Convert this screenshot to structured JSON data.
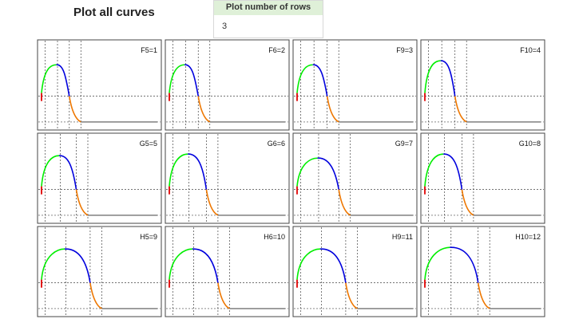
{
  "header": {
    "title": "Plot all curves",
    "rows_label": "Plot number of rows",
    "rows_value": "3"
  },
  "colors": {
    "phase1": "#e00000",
    "phase2": "#00ee00",
    "phase3": "#0000dd",
    "phase4": "#ee7700",
    "tail": "#555555",
    "dashed": "#444444"
  },
  "chart_data": {
    "type": "line",
    "grid": "3x4",
    "panels": [
      {
        "label": "F5=1",
        "peak": 0.75,
        "plateau": 0.02
      },
      {
        "label": "F6=2",
        "peak": 0.75,
        "plateau": 0.03
      },
      {
        "label": "F9=3",
        "peak": 0.75,
        "plateau": 0.04
      },
      {
        "label": "F10=4",
        "peak": 0.8,
        "plateau": 0.04
      },
      {
        "label": "G5=5",
        "peak": 0.78,
        "plateau": 0.08
      },
      {
        "label": "G6=6",
        "peak": 0.8,
        "plateau": 0.1
      },
      {
        "label": "G9=7",
        "peak": 0.75,
        "plateau": 0.14
      },
      {
        "label": "G10=8",
        "peak": 0.8,
        "plateau": 0.1
      },
      {
        "label": "H5=9",
        "peak": 0.78,
        "plateau": 0.2
      },
      {
        "label": "H6=10",
        "peak": 0.78,
        "plateau": 0.2
      },
      {
        "label": "H9=11",
        "peak": 0.78,
        "plateau": 0.2
      },
      {
        "label": "H10=12",
        "peak": 0.8,
        "plateau": 0.24
      }
    ]
  }
}
